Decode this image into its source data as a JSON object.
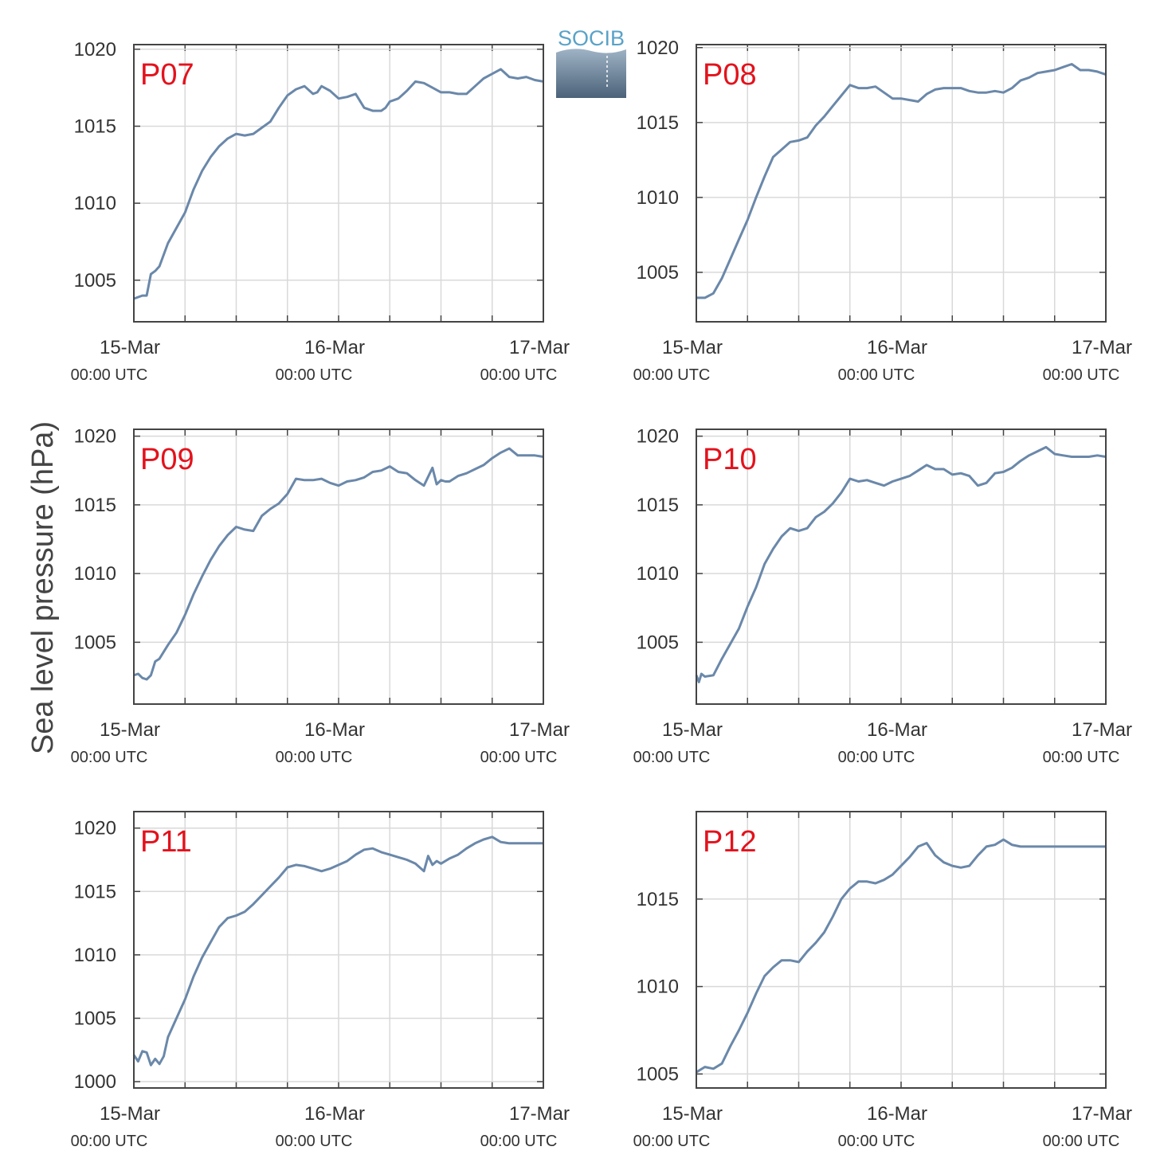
{
  "ylabel": "Sea level pressure (hPa)",
  "logo": {
    "text": "SOCIB"
  },
  "colors": {
    "line": "#6a88aa",
    "label": "#e3121c",
    "grid": "#d9d9d9",
    "axis": "#444444"
  },
  "chart_data": [
    {
      "type": "line",
      "panel_label": "P07",
      "xlim": [
        "2016-03-15T00:00",
        "2016-03-17T00:00"
      ],
      "ylim": [
        1002.3,
        1020.3
      ],
      "yticks": [
        1005,
        1010,
        1015,
        1020
      ],
      "xticks": [
        "15-Mar\n00:00 UTC",
        "16-Mar\n00:00 UTC",
        "17-Mar\n00:00 UTC"
      ],
      "grid": true,
      "x_hours": [
        0,
        1,
        1.5,
        2,
        2.5,
        3,
        4,
        5,
        6,
        7,
        8,
        9,
        10,
        11,
        12,
        13,
        14,
        15,
        16,
        17,
        18,
        19,
        20,
        21,
        21.5,
        22,
        23,
        24,
        25,
        26,
        27,
        28,
        29,
        29.5,
        30,
        31,
        32,
        33,
        34,
        35,
        36,
        37,
        38,
        39,
        40,
        41,
        42,
        43,
        44,
        45,
        46,
        47,
        48
      ],
      "values": [
        1003.8,
        1004,
        1004,
        1005.4,
        1005.6,
        1005.9,
        1007.4,
        1008.4,
        1009.4,
        1010.9,
        1012.1,
        1013.0,
        1013.7,
        1014.2,
        1014.5,
        1014.4,
        1014.5,
        1014.9,
        1015.3,
        1016.2,
        1017.0,
        1017.4,
        1017.6,
        1017.1,
        1017.2,
        1017.6,
        1017.3,
        1016.8,
        1016.9,
        1017.1,
        1016.2,
        1016.0,
        1016.0,
        1016.2,
        1016.6,
        1016.8,
        1017.3,
        1017.9,
        1017.8,
        1017.5,
        1017.2,
        1017.2,
        1017.1,
        1017.1,
        1017.6,
        1018.1,
        1018.4,
        1018.7,
        1018.2,
        1018.1,
        1018.2,
        1018.0,
        1017.9
      ]
    },
    {
      "type": "line",
      "panel_label": "P08",
      "xlim": [
        "2016-03-15T00:00",
        "2016-03-17T00:00"
      ],
      "ylim": [
        1001.7,
        1020.2
      ],
      "yticks": [
        1005,
        1010,
        1015,
        1020
      ],
      "xticks": [
        "15-Mar\n00:00 UTC",
        "16-Mar\n00:00 UTC",
        "17-Mar\n00:00 UTC"
      ],
      "grid": true,
      "x_hours": [
        0,
        1,
        2,
        3,
        4,
        5,
        6,
        7,
        8,
        9,
        10,
        11,
        12,
        13,
        14,
        15,
        16,
        17,
        18,
        19,
        20,
        21,
        22,
        23,
        24,
        25,
        26,
        27,
        28,
        29,
        30,
        31,
        32,
        33,
        34,
        35,
        36,
        37,
        38,
        39,
        40,
        41,
        42,
        43,
        44,
        45,
        46,
        47,
        48
      ],
      "values": [
        1003.3,
        1003.3,
        1003.6,
        1004.6,
        1005.9,
        1007.2,
        1008.5,
        1010.0,
        1011.4,
        1012.7,
        1013.2,
        1013.7,
        1013.8,
        1014.0,
        1014.8,
        1015.4,
        1016.1,
        1016.8,
        1017.5,
        1017.3,
        1017.3,
        1017.4,
        1017.0,
        1016.6,
        1016.6,
        1016.5,
        1016.4,
        1016.9,
        1017.2,
        1017.3,
        1017.3,
        1017.3,
        1017.1,
        1017.0,
        1017.0,
        1017.1,
        1017.0,
        1017.3,
        1017.8,
        1018.0,
        1018.3,
        1018.4,
        1018.5,
        1018.7,
        1018.9,
        1018.5,
        1018.5,
        1018.4,
        1018.2
      ]
    },
    {
      "type": "line",
      "panel_label": "P09",
      "xlim": [
        "2016-03-15T00:00",
        "2016-03-17T00:00"
      ],
      "ylim": [
        1000.5,
        1020.5
      ],
      "yticks": [
        1005,
        1010,
        1015,
        1020
      ],
      "xticks": [
        "15-Mar\n00:00 UTC",
        "16-Mar\n00:00 UTC",
        "17-Mar\n00:00 UTC"
      ],
      "grid": true,
      "x_hours": [
        0,
        0.5,
        1,
        1.5,
        2,
        2.5,
        3,
        4,
        5,
        6,
        7,
        8,
        9,
        10,
        11,
        12,
        13,
        14,
        15,
        16,
        17,
        18,
        19,
        20,
        21,
        22,
        23,
        24,
        25,
        26,
        27,
        28,
        29,
        30,
        31,
        32,
        33,
        34,
        35,
        35.5,
        36,
        36.5,
        37,
        38,
        39,
        40,
        41,
        42,
        43,
        44,
        45,
        46,
        47,
        48
      ],
      "values": [
        1002.6,
        1002.7,
        1002.4,
        1002.3,
        1002.6,
        1003.6,
        1003.8,
        1004.8,
        1005.7,
        1007.0,
        1008.5,
        1009.8,
        1011.0,
        1012.0,
        1012.8,
        1013.4,
        1013.2,
        1013.1,
        1014.2,
        1014.7,
        1015.1,
        1015.8,
        1016.9,
        1016.8,
        1016.8,
        1016.9,
        1016.6,
        1016.4,
        1016.7,
        1016.8,
        1017.0,
        1017.4,
        1017.5,
        1017.8,
        1017.4,
        1017.3,
        1016.8,
        1016.4,
        1017.7,
        1016.5,
        1016.8,
        1016.7,
        1016.7,
        1017.1,
        1017.3,
        1017.6,
        1017.9,
        1018.4,
        1018.8,
        1019.1,
        1018.6,
        1018.6,
        1018.6,
        1018.5
      ]
    },
    {
      "type": "line",
      "panel_label": "P10",
      "xlim": [
        "2016-03-15T00:00",
        "2016-03-17T00:00"
      ],
      "ylim": [
        1000.5,
        1020.5
      ],
      "yticks": [
        1005,
        1010,
        1015,
        1020
      ],
      "xticks": [
        "15-Mar\n00:00 UTC",
        "16-Mar\n00:00 UTC",
        "17-Mar\n00:00 UTC"
      ],
      "grid": true,
      "x_hours": [
        0,
        0.3,
        0.6,
        1,
        2,
        3,
        4,
        5,
        6,
        7,
        8,
        9,
        10,
        11,
        12,
        13,
        14,
        15,
        16,
        17,
        18,
        19,
        20,
        21,
        22,
        23,
        24,
        25,
        26,
        27,
        28,
        29,
        30,
        31,
        32,
        33,
        34,
        35,
        36,
        37,
        38,
        39,
        40,
        41,
        42,
        43,
        44,
        45,
        46,
        47,
        48
      ],
      "values": [
        1002.6,
        1002.1,
        1002.7,
        1002.5,
        1002.6,
        1003.8,
        1004.9,
        1006.0,
        1007.6,
        1009.0,
        1010.7,
        1011.8,
        1012.7,
        1013.3,
        1013.1,
        1013.3,
        1014.1,
        1014.5,
        1015.1,
        1015.9,
        1016.9,
        1016.7,
        1016.8,
        1016.6,
        1016.4,
        1016.7,
        1016.9,
        1017.1,
        1017.5,
        1017.9,
        1017.6,
        1017.6,
        1017.2,
        1017.3,
        1017.1,
        1016.4,
        1016.6,
        1017.3,
        1017.4,
        1017.7,
        1018.2,
        1018.6,
        1018.9,
        1019.2,
        1018.7,
        1018.6,
        1018.5,
        1018.5,
        1018.5,
        1018.6,
        1018.5
      ]
    },
    {
      "type": "line",
      "panel_label": "P11",
      "xlim": [
        "2016-03-15T00:00",
        "2016-03-17T00:00"
      ],
      "ylim": [
        999.5,
        1021.3
      ],
      "yticks": [
        1000,
        1005,
        1010,
        1015,
        1020
      ],
      "xticks": [
        "15-Mar\n00:00 UTC",
        "16-Mar\n00:00 UTC",
        "17-Mar\n00:00 UTC"
      ],
      "grid": true,
      "x_hours": [
        0,
        0.5,
        1,
        1.5,
        2,
        2.5,
        3,
        3.5,
        4,
        5,
        6,
        7,
        8,
        9,
        10,
        11,
        12,
        13,
        14,
        15,
        16,
        17,
        18,
        19,
        20,
        21,
        22,
        23,
        24,
        25,
        26,
        27,
        28,
        29,
        30,
        31,
        32,
        33,
        34,
        34.5,
        35,
        35.5,
        36,
        37,
        38,
        39,
        40,
        41,
        42,
        43,
        44,
        45,
        46,
        47,
        48
      ],
      "values": [
        1002.1,
        1001.6,
        1002.4,
        1002.3,
        1001.3,
        1001.8,
        1001.4,
        1002.0,
        1003.5,
        1005.0,
        1006.5,
        1008.3,
        1009.8,
        1011.0,
        1012.2,
        1012.9,
        1013.1,
        1013.4,
        1014.0,
        1014.7,
        1015.4,
        1016.1,
        1016.9,
        1017.1,
        1017.0,
        1016.8,
        1016.6,
        1016.8,
        1017.1,
        1017.4,
        1017.9,
        1018.3,
        1018.4,
        1018.1,
        1017.9,
        1017.7,
        1017.5,
        1017.2,
        1016.6,
        1017.8,
        1017.1,
        1017.4,
        1017.2,
        1017.6,
        1017.9,
        1018.4,
        1018.8,
        1019.1,
        1019.3,
        1018.9,
        1018.8,
        1018.8,
        1018.8,
        1018.8,
        1018.8
      ]
    },
    {
      "type": "line",
      "panel_label": "P12",
      "xlim": [
        "2016-03-15T00:00",
        "2016-03-17T00:00"
      ],
      "ylim": [
        1004.2,
        1020.0
      ],
      "yticks": [
        1005,
        1010,
        1015
      ],
      "xticks": [
        "15-Mar\n00:00 UTC",
        "16-Mar\n00:00 UTC",
        "17-Mar\n00:00 UTC"
      ],
      "grid": true,
      "x_hours": [
        0,
        1,
        2,
        3,
        4,
        5,
        6,
        7,
        8,
        9,
        10,
        11,
        12,
        13,
        14,
        15,
        16,
        17,
        18,
        19,
        20,
        21,
        22,
        23,
        24,
        25,
        26,
        27,
        28,
        29,
        30,
        31,
        32,
        33,
        34,
        35,
        36,
        37,
        38,
        39,
        40,
        41,
        42,
        43,
        44,
        45,
        46,
        47,
        48
      ],
      "values": [
        1005.1,
        1005.4,
        1005.3,
        1005.6,
        1006.6,
        1007.5,
        1008.5,
        1009.6,
        1010.6,
        1011.1,
        1011.5,
        1011.5,
        1011.4,
        1012.0,
        1012.5,
        1013.1,
        1014.0,
        1015.0,
        1015.6,
        1016.0,
        1016.0,
        1015.9,
        1016.1,
        1016.4,
        1016.9,
        1017.4,
        1018.0,
        1018.2,
        1017.5,
        1017.1,
        1016.9,
        1016.8,
        1016.9,
        1017.5,
        1018.0,
        1018.1,
        1018.4,
        1018.1,
        1018.0,
        1018.0,
        1018.0,
        1018.0,
        1018.0,
        1018.0,
        1018.0,
        1018.0,
        1018.0,
        1018.0,
        1018.0
      ]
    }
  ]
}
